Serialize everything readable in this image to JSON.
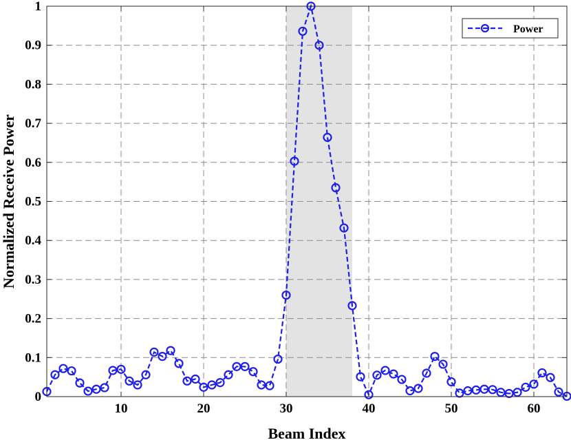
{
  "chart_data": {
    "type": "line",
    "xlabel": "Beam Index",
    "ylabel": "Normalized Receive Power",
    "xlim": [
      1,
      64
    ],
    "ylim": [
      0,
      1
    ],
    "x_ticks": [
      10,
      20,
      30,
      40,
      50,
      60
    ],
    "y_ticks": [
      0,
      0.1,
      0.2,
      0.3,
      0.4,
      0.5,
      0.6,
      0.7,
      0.8,
      0.9,
      1
    ],
    "y_tick_labels": [
      "0",
      "0.1",
      "0.2",
      "0.3",
      "0.4",
      "0.5",
      "0.6",
      "0.7",
      "0.8",
      "0.9",
      "1"
    ],
    "grid": true,
    "highlight_region": {
      "x_start": 30,
      "x_end": 38,
      "color": "#e3e3e3"
    },
    "legend": {
      "position": "top-right"
    },
    "series": [
      {
        "name": "Power",
        "color": "#1f1fe6",
        "line_style": "dashed",
        "marker": "circle",
        "x": [
          1,
          2,
          3,
          4,
          5,
          6,
          7,
          8,
          9,
          10,
          11,
          12,
          13,
          14,
          15,
          16,
          17,
          18,
          19,
          20,
          21,
          22,
          23,
          24,
          25,
          26,
          27,
          28,
          29,
          30,
          31,
          32,
          33,
          34,
          35,
          36,
          37,
          38,
          39,
          40,
          41,
          42,
          43,
          44,
          45,
          46,
          47,
          48,
          49,
          50,
          51,
          52,
          53,
          54,
          55,
          56,
          57,
          58,
          59,
          60,
          61,
          62,
          63,
          64
        ],
        "values": [
          0.013,
          0.056,
          0.072,
          0.066,
          0.035,
          0.014,
          0.019,
          0.023,
          0.067,
          0.07,
          0.04,
          0.03,
          0.056,
          0.114,
          0.103,
          0.118,
          0.085,
          0.04,
          0.045,
          0.024,
          0.03,
          0.036,
          0.056,
          0.077,
          0.077,
          0.064,
          0.03,
          0.028,
          0.096,
          0.26,
          0.603,
          0.936,
          1.0,
          0.9,
          0.664,
          0.535,
          0.432,
          0.233,
          0.051,
          0.005,
          0.055,
          0.067,
          0.058,
          0.044,
          0.015,
          0.021,
          0.06,
          0.103,
          0.083,
          0.038,
          0.009,
          0.015,
          0.017,
          0.019,
          0.018,
          0.011,
          0.008,
          0.011,
          0.024,
          0.032,
          0.061,
          0.049,
          0.012,
          0.001
        ]
      }
    ]
  }
}
